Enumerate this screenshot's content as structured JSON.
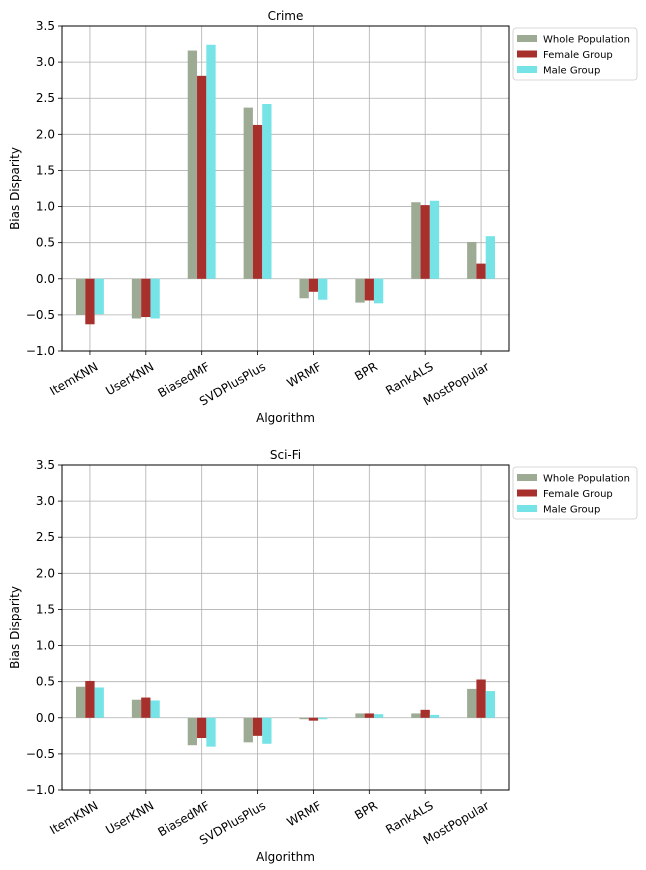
{
  "chart_data": [
    {
      "type": "bar",
      "title": "Crime",
      "xlabel": "Algorithm",
      "ylabel": "Bias Disparity",
      "ylim": [
        -1.0,
        3.5
      ],
      "yticks": [
        "−1.0",
        "−0.5",
        "0.0",
        "0.5",
        "1.0",
        "1.5",
        "2.0",
        "2.5",
        "3.0",
        "3.5"
      ],
      "grid": true,
      "legend_position": "outside-top-right",
      "categories": [
        "ItemKNN",
        "UserKNN",
        "BiasedMF",
        "SVDPlusPlus",
        "WRMF",
        "BPR",
        "RankALS",
        "MostPopular"
      ],
      "series": [
        {
          "name": "Whole Population",
          "color": "#9dab95",
          "values": [
            -0.5,
            -0.55,
            3.16,
            2.37,
            -0.27,
            -0.33,
            1.06,
            0.51
          ]
        },
        {
          "name": "Female Group",
          "color": "#a8302c",
          "values": [
            -0.63,
            -0.53,
            2.81,
            2.13,
            -0.18,
            -0.3,
            1.02,
            0.21
          ]
        },
        {
          "name": "Male Group",
          "color": "#76e3e6",
          "values": [
            -0.49,
            -0.55,
            3.24,
            2.42,
            -0.29,
            -0.34,
            1.08,
            0.59
          ]
        }
      ]
    },
    {
      "type": "bar",
      "title": "Sci-Fi",
      "xlabel": "Algorithm",
      "ylabel": "Bias Disparity",
      "ylim": [
        -1.0,
        3.5
      ],
      "yticks": [
        "−1.0",
        "−0.5",
        "0.0",
        "0.5",
        "1.0",
        "1.5",
        "2.0",
        "2.5",
        "3.0",
        "3.5"
      ],
      "grid": true,
      "legend_position": "outside-top-right",
      "categories": [
        "ItemKNN",
        "UserKNN",
        "BiasedMF",
        "SVDPlusPlus",
        "WRMF",
        "BPR",
        "RankALS",
        "MostPopular"
      ],
      "series": [
        {
          "name": "Whole Population",
          "color": "#9dab95",
          "values": [
            0.43,
            0.25,
            -0.38,
            -0.34,
            -0.02,
            0.06,
            0.06,
            0.4
          ]
        },
        {
          "name": "Female Group",
          "color": "#a8302c",
          "values": [
            0.51,
            0.28,
            -0.28,
            -0.25,
            -0.04,
            0.06,
            0.11,
            0.53
          ]
        },
        {
          "name": "Male Group",
          "color": "#76e3e6",
          "values": [
            0.42,
            0.24,
            -0.4,
            -0.36,
            -0.02,
            0.05,
            0.04,
            0.37
          ]
        }
      ]
    }
  ]
}
